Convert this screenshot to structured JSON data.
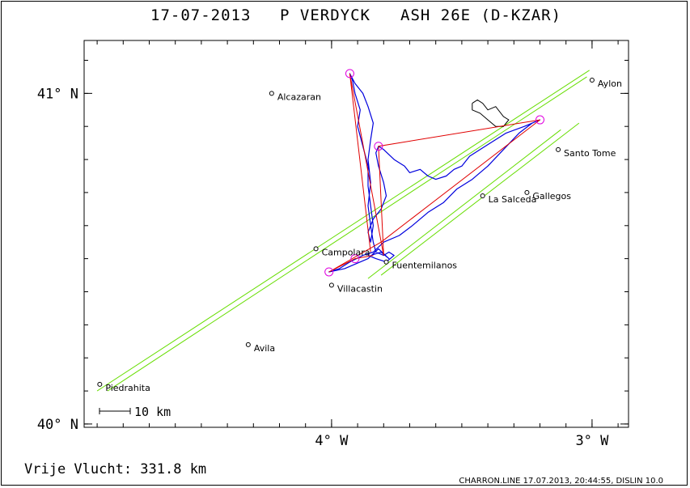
{
  "header": {
    "date": "17-07-2013",
    "pilot": "P VERDYCK",
    "glider": "ASH 26E (D-KZAR)"
  },
  "footer": {
    "flight": "Vrije Vlucht:  331.8 km",
    "info": "CHARRON.LINE 17.07.2013, 20:44:55, DISLIN 10.0"
  },
  "scale_bar": {
    "label": "10 km"
  },
  "colors": {
    "track": "#0000dd",
    "task": "#e00000",
    "turnpoint": "#e000e0",
    "sector": "#66dd00",
    "frame": "#000000"
  },
  "chart_data": {
    "type": "map",
    "xlim": [
      -4.95,
      -2.86
    ],
    "ylim": [
      39.99,
      41.16
    ],
    "x_ticks": [
      {
        "value": -4.0,
        "label": "4° W"
      },
      {
        "value": -3.0,
        "label": "3° W"
      }
    ],
    "y_ticks": [
      {
        "value": 40.0,
        "label": "40° N"
      },
      {
        "value": 41.0,
        "label": "41° N"
      }
    ],
    "places": [
      {
        "name": "Aylon",
        "lon": -3.0,
        "lat": 41.04
      },
      {
        "name": "Alcazaran",
        "lon": -4.23,
        "lat": 41.0
      },
      {
        "name": "Santo Tome",
        "lon": -3.13,
        "lat": 40.83
      },
      {
        "name": "Gallegos",
        "lon": -3.25,
        "lat": 40.7
      },
      {
        "name": "La Salceda",
        "lon": -3.42,
        "lat": 40.69
      },
      {
        "name": "Campolara",
        "lon": -4.06,
        "lat": 40.53
      },
      {
        "name": "Fuentemilanos",
        "lon": -3.79,
        "lat": 40.49
      },
      {
        "name": "Villacastin",
        "lon": -4.0,
        "lat": 40.42
      },
      {
        "name": "Avila",
        "lon": -4.32,
        "lat": 40.24
      },
      {
        "name": "Piedrahita",
        "lon": -4.89,
        "lat": 40.12
      }
    ],
    "task": [
      {
        "lon": -3.84,
        "lat": 40.51
      },
      {
        "lon": -3.91,
        "lat": 40.5
      },
      {
        "lon": -4.01,
        "lat": 40.46
      },
      {
        "lon": -3.81,
        "lat": 40.55
      },
      {
        "lon": -3.2,
        "lat": 40.92
      },
      {
        "lon": -3.82,
        "lat": 40.84
      },
      {
        "lon": -3.8,
        "lat": 40.51
      },
      {
        "lon": -3.93,
        "lat": 41.06
      },
      {
        "lon": -3.85,
        "lat": 40.52
      }
    ],
    "turnpoints": [
      {
        "lon": -3.93,
        "lat": 41.06
      },
      {
        "lon": -3.82,
        "lat": 40.84
      },
      {
        "lon": -3.2,
        "lat": 40.92
      },
      {
        "lon": -4.01,
        "lat": 40.46
      },
      {
        "lon": -3.91,
        "lat": 40.5
      }
    ],
    "sectors": [
      {
        "from": {
          "lon": -4.9,
          "lat": 40.1
        },
        "to": {
          "lon": -3.01,
          "lat": 41.07
        }
      },
      {
        "from": {
          "lon": -4.86,
          "lat": 40.1
        },
        "to": {
          "lon": -3.02,
          "lat": 41.05
        }
      },
      {
        "from": {
          "lon": -3.86,
          "lat": 40.44
        },
        "to": {
          "lon": -3.12,
          "lat": 40.89
        }
      },
      {
        "from": {
          "lon": -3.81,
          "lat": 40.45
        },
        "to": {
          "lon": -3.05,
          "lat": 40.91
        }
      }
    ],
    "airspace": [
      {
        "lon": -3.46,
        "lat": 40.97
      },
      {
        "lon": -3.44,
        "lat": 40.98
      },
      {
        "lon": -3.42,
        "lat": 40.97
      },
      {
        "lon": -3.4,
        "lat": 40.95
      },
      {
        "lon": -3.37,
        "lat": 40.96
      },
      {
        "lon": -3.34,
        "lat": 40.93
      },
      {
        "lon": -3.32,
        "lat": 40.92
      },
      {
        "lon": -3.34,
        "lat": 40.9
      },
      {
        "lon": -3.37,
        "lat": 40.9
      },
      {
        "lon": -3.4,
        "lat": 40.92
      },
      {
        "lon": -3.43,
        "lat": 40.94
      },
      {
        "lon": -3.46,
        "lat": 40.95
      },
      {
        "lon": -3.46,
        "lat": 40.97
      }
    ],
    "track": [
      {
        "lon": -3.85,
        "lat": 40.51
      },
      {
        "lon": -3.81,
        "lat": 40.52
      },
      {
        "lon": -3.78,
        "lat": 40.5
      },
      {
        "lon": -3.82,
        "lat": 40.53
      },
      {
        "lon": -3.86,
        "lat": 40.5
      },
      {
        "lon": -3.95,
        "lat": 40.47
      },
      {
        "lon": -4.01,
        "lat": 40.46
      },
      {
        "lon": -3.97,
        "lat": 40.47
      },
      {
        "lon": -3.93,
        "lat": 40.49
      },
      {
        "lon": -3.88,
        "lat": 40.51
      },
      {
        "lon": -3.84,
        "lat": 40.52
      },
      {
        "lon": -3.8,
        "lat": 40.55
      },
      {
        "lon": -3.74,
        "lat": 40.57
      },
      {
        "lon": -3.69,
        "lat": 40.6
      },
      {
        "lon": -3.63,
        "lat": 40.64
      },
      {
        "lon": -3.57,
        "lat": 40.67
      },
      {
        "lon": -3.52,
        "lat": 40.71
      },
      {
        "lon": -3.46,
        "lat": 40.74
      },
      {
        "lon": -3.4,
        "lat": 40.78
      },
      {
        "lon": -3.34,
        "lat": 40.83
      },
      {
        "lon": -3.28,
        "lat": 40.88
      },
      {
        "lon": -3.23,
        "lat": 40.91
      },
      {
        "lon": -3.2,
        "lat": 40.92
      },
      {
        "lon": -3.26,
        "lat": 40.9
      },
      {
        "lon": -3.33,
        "lat": 40.88
      },
      {
        "lon": -3.39,
        "lat": 40.85
      },
      {
        "lon": -3.43,
        "lat": 40.83
      },
      {
        "lon": -3.47,
        "lat": 40.81
      },
      {
        "lon": -3.5,
        "lat": 40.78
      },
      {
        "lon": -3.53,
        "lat": 40.77
      },
      {
        "lon": -3.56,
        "lat": 40.75
      },
      {
        "lon": -3.6,
        "lat": 40.74
      },
      {
        "lon": -3.63,
        "lat": 40.75
      },
      {
        "lon": -3.66,
        "lat": 40.77
      },
      {
        "lon": -3.7,
        "lat": 40.76
      },
      {
        "lon": -3.72,
        "lat": 40.78
      },
      {
        "lon": -3.76,
        "lat": 40.8
      },
      {
        "lon": -3.8,
        "lat": 40.83
      },
      {
        "lon": -3.82,
        "lat": 40.84
      },
      {
        "lon": -3.83,
        "lat": 40.82
      },
      {
        "lon": -3.82,
        "lat": 40.78
      },
      {
        "lon": -3.8,
        "lat": 40.73
      },
      {
        "lon": -3.79,
        "lat": 40.69
      },
      {
        "lon": -3.81,
        "lat": 40.65
      },
      {
        "lon": -3.84,
        "lat": 40.62
      },
      {
        "lon": -3.86,
        "lat": 40.58
      },
      {
        "lon": -3.85,
        "lat": 40.55
      },
      {
        "lon": -3.84,
        "lat": 40.6
      },
      {
        "lon": -3.85,
        "lat": 40.66
      },
      {
        "lon": -3.86,
        "lat": 40.72
      },
      {
        "lon": -3.86,
        "lat": 40.78
      },
      {
        "lon": -3.88,
        "lat": 40.84
      },
      {
        "lon": -3.9,
        "lat": 40.9
      },
      {
        "lon": -3.89,
        "lat": 40.95
      },
      {
        "lon": -3.91,
        "lat": 41.0
      },
      {
        "lon": -3.92,
        "lat": 41.04
      },
      {
        "lon": -3.93,
        "lat": 41.06
      },
      {
        "lon": -3.91,
        "lat": 41.03
      },
      {
        "lon": -3.88,
        "lat": 41.0
      },
      {
        "lon": -3.86,
        "lat": 40.96
      },
      {
        "lon": -3.84,
        "lat": 40.91
      },
      {
        "lon": -3.85,
        "lat": 40.86
      },
      {
        "lon": -3.86,
        "lat": 40.8
      },
      {
        "lon": -3.85,
        "lat": 40.73
      },
      {
        "lon": -3.86,
        "lat": 40.66
      },
      {
        "lon": -3.85,
        "lat": 40.6
      },
      {
        "lon": -3.84,
        "lat": 40.55
      },
      {
        "lon": -3.83,
        "lat": 40.52
      },
      {
        "lon": -3.8,
        "lat": 40.51
      },
      {
        "lon": -3.78,
        "lat": 40.52
      },
      {
        "lon": -3.76,
        "lat": 40.51
      },
      {
        "lon": -3.79,
        "lat": 40.49
      },
      {
        "lon": -3.83,
        "lat": 40.5
      },
      {
        "lon": -3.86,
        "lat": 40.51
      }
    ]
  }
}
